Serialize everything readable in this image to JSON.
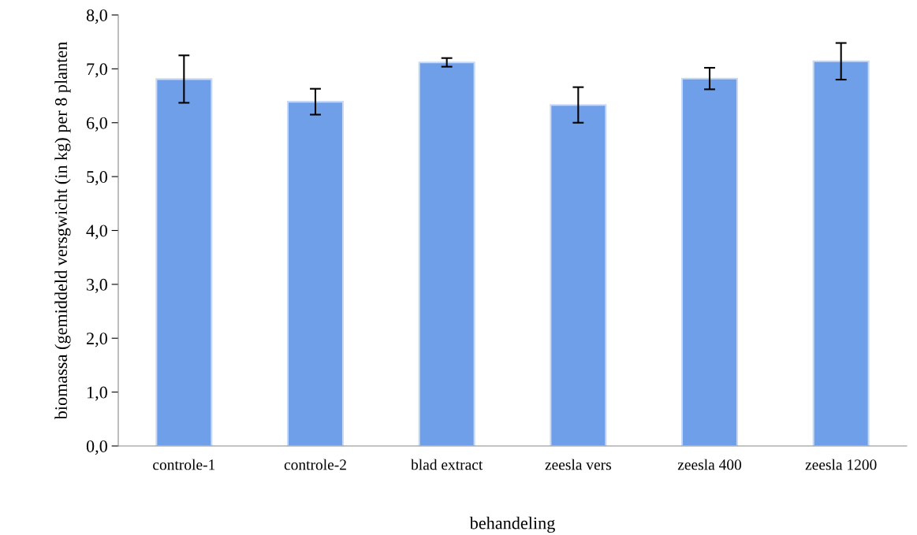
{
  "chart_data": {
    "type": "bar",
    "xlabel": "behandeling",
    "ylabel": "biomassa (gemiddeld versgwicht (in kg) per 8 planten",
    "categories": [
      "controle-1",
      "controle-2",
      "blad extract",
      "zeesla vers",
      "zeesla 400",
      "zeesla 1200"
    ],
    "values": [
      6.81,
      6.39,
      7.12,
      6.33,
      6.82,
      7.14
    ],
    "errors": [
      0.44,
      0.24,
      0.08,
      0.33,
      0.2,
      0.34
    ],
    "color": "#6f9fe8",
    "ylim": [
      0,
      8
    ],
    "yticks": [
      {
        "value": 0,
        "label": "0,0"
      },
      {
        "value": 1,
        "label": "1,0"
      },
      {
        "value": 2,
        "label": "2,0"
      },
      {
        "value": 3,
        "label": "3,0"
      },
      {
        "value": 4,
        "label": "4,0"
      },
      {
        "value": 5,
        "label": "5,0"
      },
      {
        "value": 6,
        "label": "6,0"
      },
      {
        "value": 7,
        "label": "7,0"
      },
      {
        "value": 8,
        "label": "8,0"
      }
    ]
  }
}
